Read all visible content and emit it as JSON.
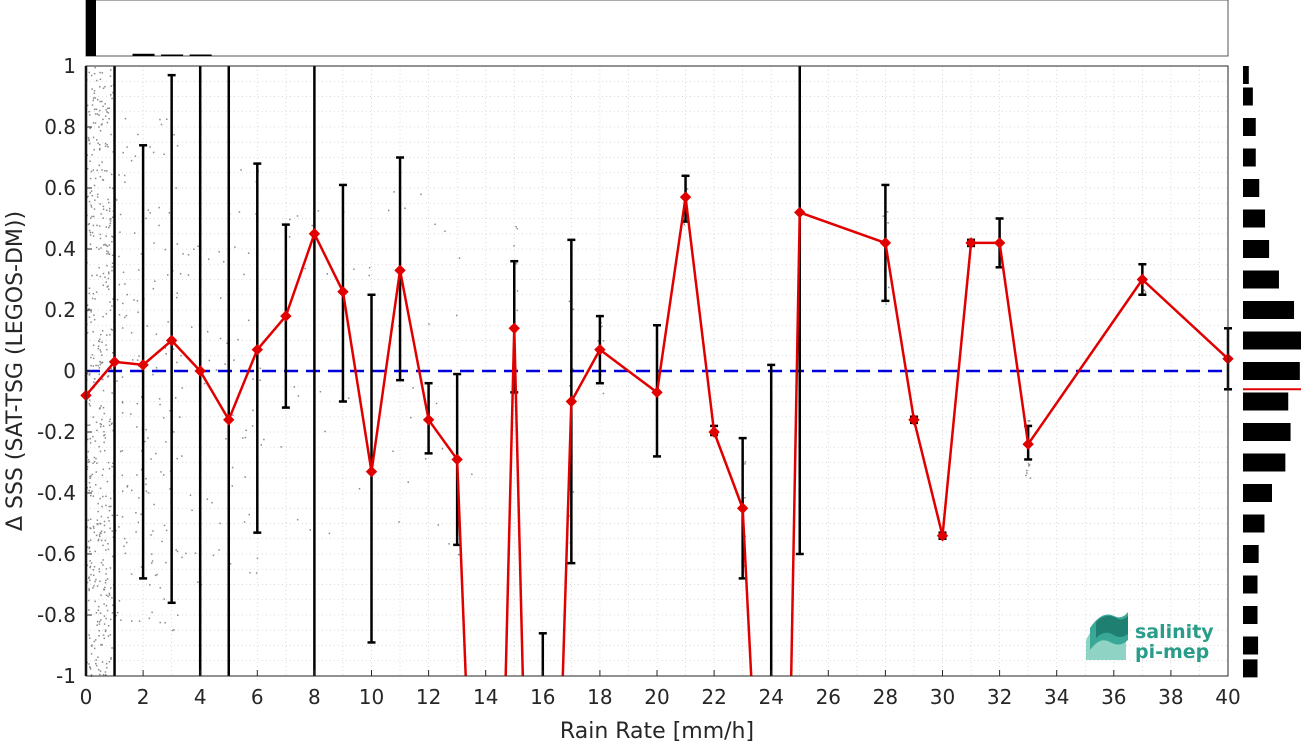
{
  "chart_data": {
    "type": "line",
    "xlabel": "Rain Rate [mm/h]",
    "ylabel": "Δ SSS (SAT-TSG (LEGOS-DM))",
    "xlim": [
      0,
      40
    ],
    "ylim": [
      -1,
      1
    ],
    "x_ticks": [
      "0",
      "2",
      "4",
      "6",
      "8",
      "10",
      "12",
      "14",
      "16",
      "18",
      "20",
      "22",
      "24",
      "26",
      "28",
      "30",
      "32",
      "34",
      "36",
      "38",
      "40"
    ],
    "y_ticks": [
      "1",
      "0.8",
      "0.6",
      "0.4",
      "0.2",
      "0",
      "-0.2",
      "-0.4",
      "-0.6",
      "-0.8",
      "-1"
    ],
    "grid": true,
    "reference_line": {
      "y": 0,
      "color": "#0000dd",
      "style": "dashed"
    },
    "series": [
      {
        "color": "#e00000",
        "marker": "diamond",
        "x": [
          0,
          1,
          2,
          3,
          4,
          5,
          6,
          7,
          8,
          9,
          10,
          11,
          12,
          13,
          15,
          17,
          18,
          20,
          21,
          22,
          23,
          25,
          28,
          29,
          30,
          31,
          32,
          33,
          37,
          40
        ],
        "y": [
          -0.08,
          0.03,
          0.02,
          0.1,
          0.0,
          -0.16,
          0.07,
          0.18,
          0.45,
          0.26,
          -0.33,
          0.33,
          -0.16,
          -0.29,
          0.14,
          -0.1,
          0.07,
          -0.07,
          0.57,
          -0.2,
          -0.45,
          0.52,
          0.42,
          -0.16,
          -0.54,
          0.42,
          0.42,
          -0.24,
          0.3,
          0.04
        ],
        "err_low": [
          -1.5,
          -1.5,
          -0.68,
          -0.76,
          -1.5,
          -1.5,
          -0.53,
          -0.12,
          -1.5,
          -0.1,
          -0.89,
          -0.03,
          -0.27,
          -0.57,
          -0.07,
          -0.63,
          -0.04,
          -0.28,
          0.49,
          -0.21,
          -0.68,
          -0.6,
          0.23,
          -0.17,
          -0.55,
          0.41,
          0.34,
          -0.29,
          0.25,
          -0.06
        ],
        "err_high": [
          1.5,
          1.5,
          0.74,
          0.97,
          1.5,
          1.5,
          0.68,
          0.48,
          1.5,
          0.61,
          0.25,
          0.7,
          -0.04,
          -0.01,
          0.36,
          0.43,
          0.18,
          0.15,
          0.64,
          -0.18,
          -0.22,
          1.5,
          0.61,
          -0.15,
          -0.53,
          0.43,
          0.5,
          -0.18,
          0.35,
          0.14
        ]
      }
    ],
    "offscreen_segments": [
      {
        "from": {
          "x": 13,
          "y": -0.29
        },
        "to_x": 15,
        "to_y": 0.14,
        "dips_below": true
      },
      {
        "between": [
          15,
          17
        ],
        "dips_below": true
      },
      {
        "between": [
          23,
          25
        ],
        "dips_below": true
      }
    ],
    "extra_errorbars": [
      {
        "x": 16,
        "low": -1.5,
        "high": -0.86
      },
      {
        "x": 24,
        "low": -1.5,
        "high": 0.02
      }
    ],
    "top_histogram": {
      "bins": [
        0,
        1,
        2,
        3
      ],
      "values": [
        1.0,
        0.04,
        0.02,
        0.01
      ]
    },
    "right_histogram": {
      "bin_centers": [
        0.975,
        0.9,
        0.8,
        0.7,
        0.6,
        0.5,
        0.4,
        0.3,
        0.2,
        0.1,
        0.0,
        -0.1,
        -0.2,
        -0.3,
        -0.4,
        -0.5,
        -0.6,
        -0.7,
        -0.8,
        -0.9,
        -0.975
      ],
      "values": [
        0.1,
        0.17,
        0.22,
        0.22,
        0.28,
        0.38,
        0.45,
        0.62,
        0.88,
        1.0,
        0.98,
        0.78,
        0.82,
        0.73,
        0.5,
        0.37,
        0.27,
        0.25,
        0.25,
        0.26,
        0.25
      ],
      "median_marker": -0.06,
      "marker_color": "#e00000"
    }
  },
  "logo": {
    "line1": "salinity",
    "line2": "pi-mep",
    "color": "#2a9d8a"
  }
}
